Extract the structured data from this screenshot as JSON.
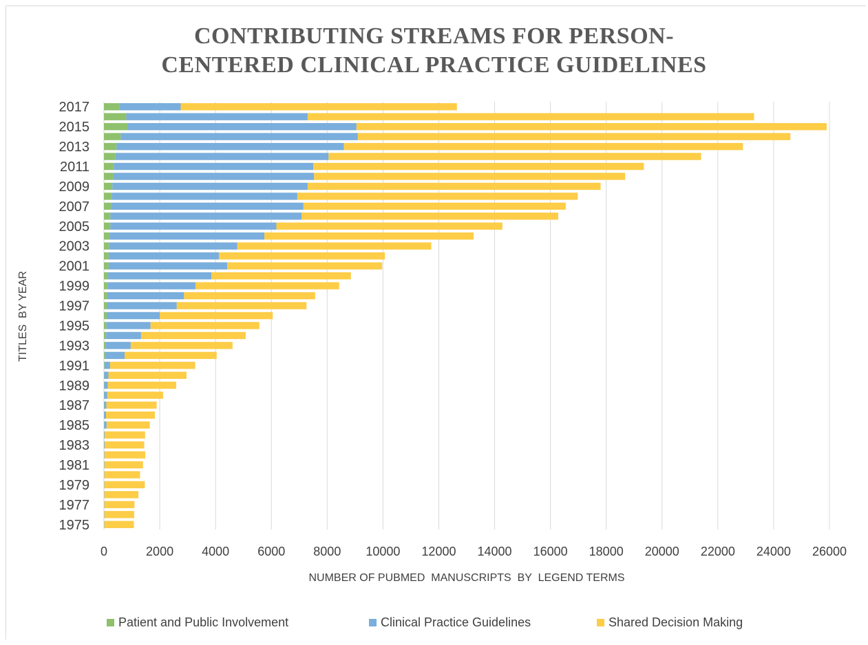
{
  "title_line1": "CONTRIBUTING STREAMS FOR PERSON-",
  "title_line2": "CENTERED CLINICAL PRACTICE  GUIDELINES",
  "colors": {
    "ppi": "#8fc16d",
    "cpg": "#7aaedc",
    "sdm": "#fdcd48",
    "grid": "#d9d9d9",
    "text": "#404040"
  },
  "chart_data": {
    "type": "bar",
    "orientation": "horizontal",
    "stacked": true,
    "title": "CONTRIBUTING STREAMS FOR PERSON- CENTERED CLINICAL PRACTICE  GUIDELINES",
    "xlabel": "NUMBER OF PUBMED  MANUSCRIPTS  BY  LEGEND TERMS",
    "ylabel": "TITLES  BY YEAR",
    "xlim": [
      0,
      26000
    ],
    "xticks": [
      "0",
      "2000",
      "4000",
      "6000",
      "8000",
      "10000",
      "12000",
      "14000",
      "16000",
      "18000",
      "20000",
      "22000",
      "24000",
      "26000"
    ],
    "yticks": [
      "2017",
      "2015",
      "2013",
      "2011",
      "2009",
      "2007",
      "2005",
      "2003",
      "2001",
      "1999",
      "1997",
      "1995",
      "1993",
      "1991",
      "1989",
      "1987",
      "1985",
      "1983",
      "1981",
      "1979",
      "1977",
      "1975"
    ],
    "grid": "vertical",
    "legend_position": "bottom",
    "categories": [
      "2017",
      "2016",
      "2015",
      "2014",
      "2013",
      "2012",
      "2011",
      "2010",
      "2009",
      "2008",
      "2007",
      "2006",
      "2005",
      "2004",
      "2003",
      "2002",
      "2001",
      "2000",
      "1999",
      "1998",
      "1997",
      "1996",
      "1995",
      "1994",
      "1993",
      "1992",
      "1991",
      "1990",
      "1989",
      "1988",
      "1987",
      "1986",
      "1985",
      "1984",
      "1983",
      "1982",
      "1981",
      "1980",
      "1979",
      "1978",
      "1977",
      "1976",
      "1975"
    ],
    "series": [
      {
        "name": "Patient and Public Involvement",
        "values": [
          550,
          800,
          850,
          600,
          450,
          400,
          350,
          330,
          300,
          280,
          250,
          230,
          230,
          200,
          180,
          170,
          170,
          150,
          130,
          120,
          110,
          100,
          90,
          80,
          60,
          40,
          20,
          10,
          10,
          10,
          10,
          5,
          5,
          5,
          5,
          5,
          5,
          5,
          5,
          5,
          5,
          5,
          5
        ]
      },
      {
        "name": "Clinical Practice Guidelines",
        "values": [
          2200,
          6500,
          8200,
          8500,
          8150,
          7650,
          7150,
          7200,
          7000,
          6650,
          6900,
          6850,
          5950,
          5550,
          4600,
          3950,
          4250,
          3700,
          3150,
          2750,
          2500,
          1900,
          1580,
          1250,
          900,
          700,
          200,
          150,
          130,
          110,
          80,
          70,
          90,
          20,
          20,
          15,
          15,
          10,
          10,
          10,
          10,
          10,
          10
        ]
      },
      {
        "name": "Shared Decision Making",
        "values": [
          9900,
          16000,
          16850,
          15500,
          14300,
          13350,
          11850,
          11150,
          10500,
          10050,
          9400,
          9200,
          8100,
          7500,
          6950,
          5950,
          5550,
          5000,
          5150,
          4700,
          4650,
          4050,
          3900,
          3750,
          3650,
          3300,
          3050,
          2800,
          2450,
          2000,
          1800,
          1750,
          1550,
          1450,
          1420,
          1460,
          1380,
          1280,
          1450,
          1220,
          1080,
          1070,
          1060
        ]
      }
    ]
  }
}
